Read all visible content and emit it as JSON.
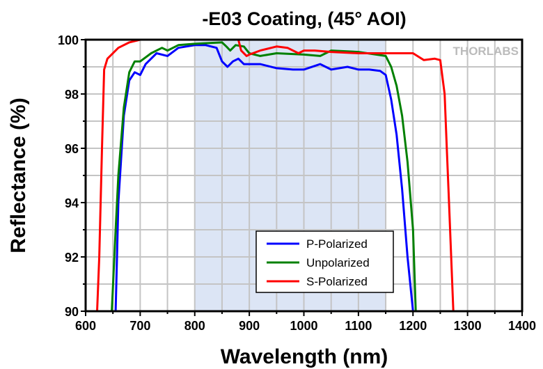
{
  "chart_data": {
    "type": "line",
    "title": "-E03 Coating, (45° AOI)",
    "xlabel": "Wavelength (nm)",
    "ylabel": "Reflectance (%)",
    "xlim": [
      600,
      1400
    ],
    "ylim": [
      90,
      100
    ],
    "xticks": [
      600,
      700,
      800,
      900,
      1000,
      1100,
      1200,
      1300,
      1400
    ],
    "yticks": [
      90,
      92,
      94,
      96,
      98,
      100
    ],
    "grid": true,
    "shaded_region": [
      800,
      1150
    ],
    "shade_color": "#dce5f5",
    "legend_placement": "bottom-center",
    "watermark": "THORLABS",
    "series": [
      {
        "name": "P-Polarized",
        "color": "#0000ff",
        "x": [
          655,
          660,
          670,
          680,
          690,
          700,
          710,
          730,
          750,
          770,
          800,
          820,
          840,
          850,
          860,
          870,
          880,
          890,
          920,
          950,
          980,
          1000,
          1030,
          1050,
          1080,
          1100,
          1120,
          1140,
          1150,
          1160,
          1170,
          1180,
          1190,
          1200
        ],
        "y": [
          90,
          94,
          97.2,
          98.5,
          98.8,
          98.7,
          99.1,
          99.5,
          99.4,
          99.7,
          99.8,
          99.8,
          99.7,
          99.2,
          99.0,
          99.2,
          99.3,
          99.1,
          99.1,
          98.95,
          98.9,
          98.9,
          99.1,
          98.9,
          99.0,
          98.9,
          98.9,
          98.85,
          98.7,
          97.8,
          96.5,
          94.5,
          92,
          90
        ]
      },
      {
        "name": "Unpolarized",
        "color": "#008000",
        "x": [
          648,
          655,
          660,
          670,
          680,
          690,
          700,
          720,
          740,
          750,
          770,
          800,
          850,
          858,
          865,
          875,
          890,
          900,
          920,
          950,
          1000,
          1030,
          1050,
          1100,
          1150,
          1160,
          1170,
          1180,
          1190,
          1200,
          1205
        ],
        "y": [
          90,
          93,
          95,
          97.5,
          98.8,
          99.2,
          99.2,
          99.5,
          99.7,
          99.6,
          99.8,
          99.85,
          99.9,
          99.75,
          99.6,
          99.8,
          99.75,
          99.5,
          99.4,
          99.5,
          99.45,
          99.4,
          99.6,
          99.55,
          99.4,
          99.0,
          98.3,
          97.2,
          95.5,
          93,
          90
        ]
      },
      {
        "name": "S-Polarized",
        "color": "#ff0000",
        "x": [
          621,
          625,
          630,
          634,
          640,
          660,
          680,
          700,
          880,
          885,
          895,
          900,
          920,
          950,
          970,
          990,
          1000,
          1020,
          1050,
          1100,
          1150,
          1200,
          1220,
          1240,
          1250,
          1258,
          1262,
          1266,
          1270,
          1274
        ],
        "y": [
          90,
          92,
          96,
          98.9,
          99.3,
          99.7,
          99.9,
          100,
          100,
          99.6,
          99.4,
          99.45,
          99.6,
          99.75,
          99.7,
          99.5,
          99.6,
          99.6,
          99.55,
          99.5,
          99.5,
          99.5,
          99.25,
          99.3,
          99.25,
          98,
          96,
          94,
          92,
          90
        ]
      }
    ]
  }
}
